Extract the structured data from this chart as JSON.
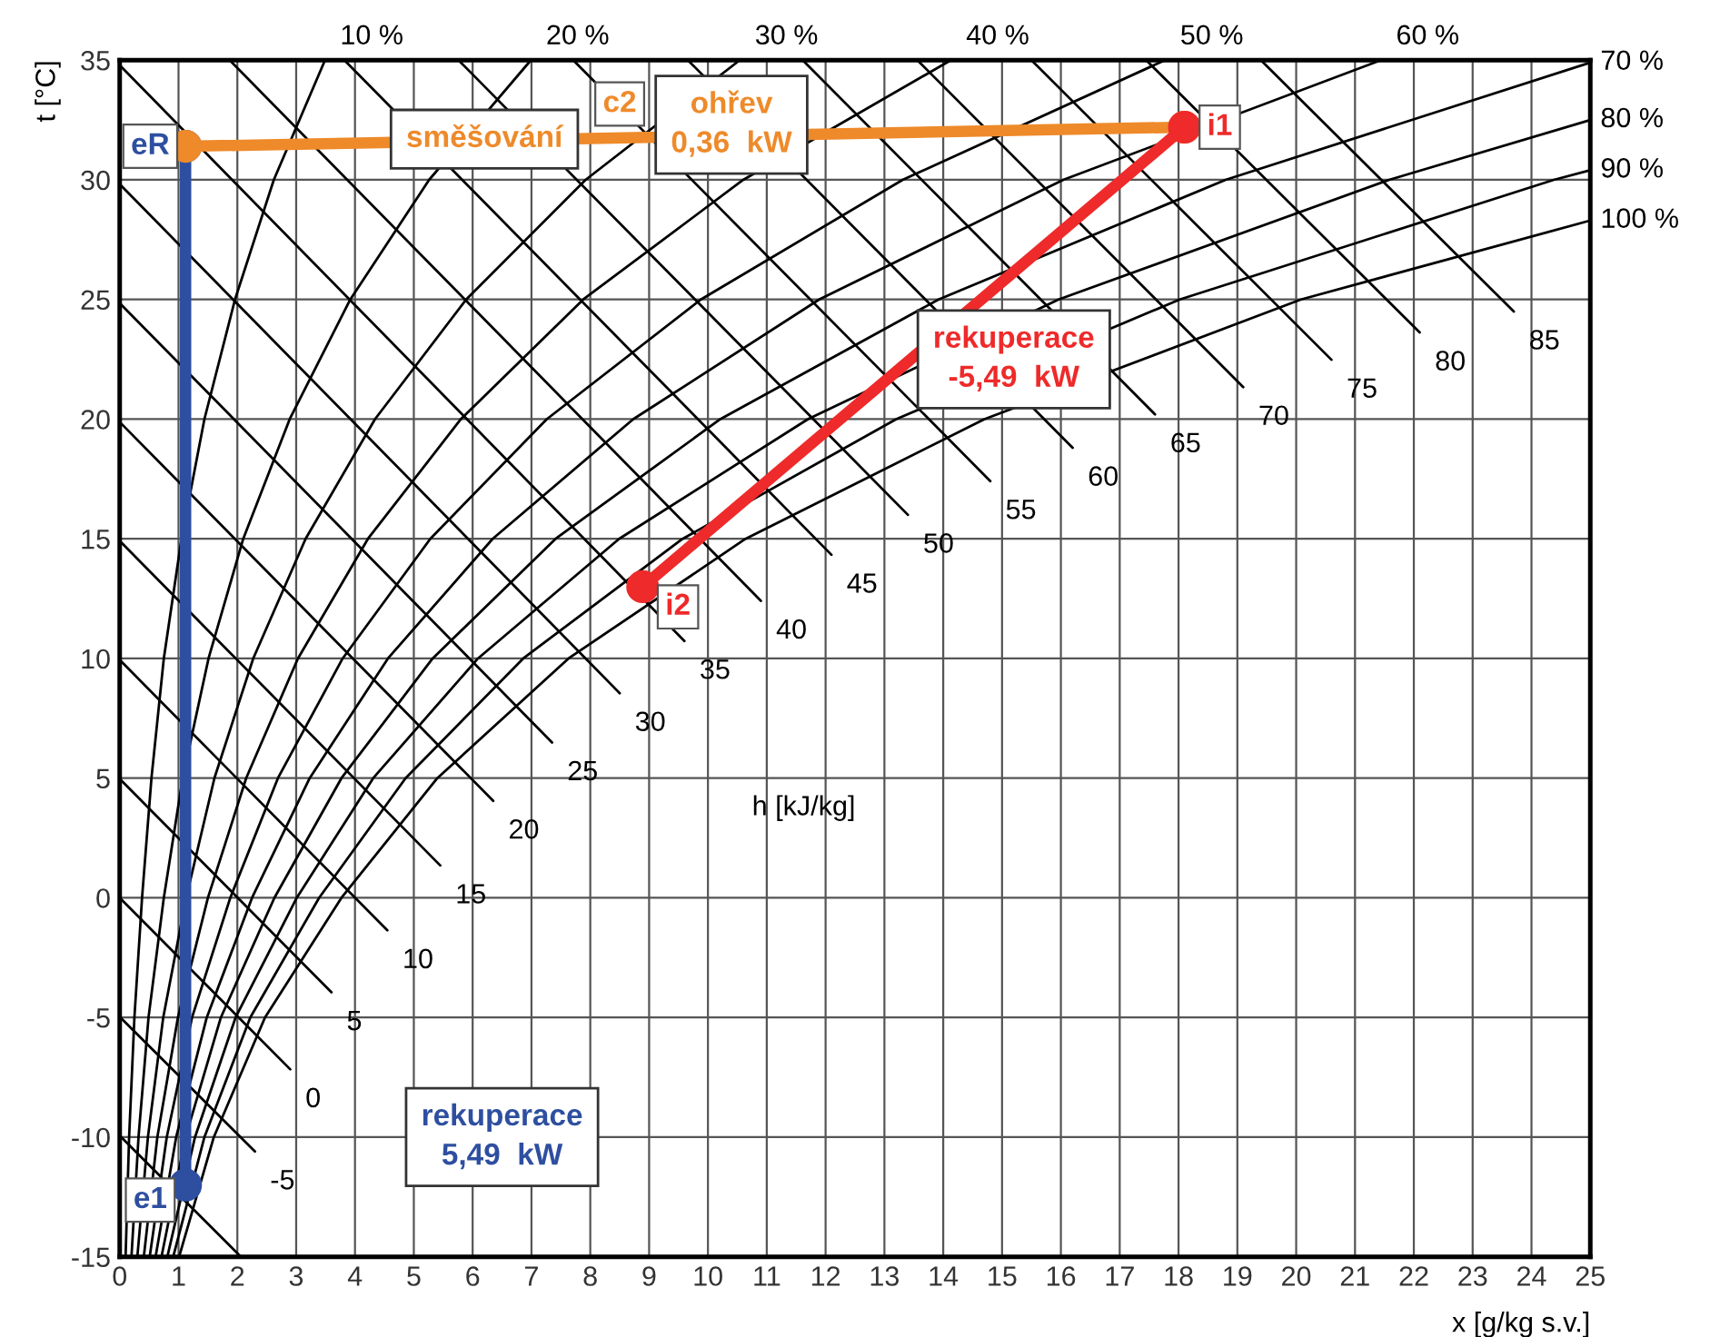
{
  "chart_data": {
    "type": "line",
    "xlabel": "x [g/kg s.v.]",
    "ylabel": "t [°C]",
    "xlim": [
      0,
      25
    ],
    "ylim": [
      -15,
      35
    ],
    "xticks": [
      0,
      1,
      2,
      3,
      4,
      5,
      6,
      7,
      8,
      9,
      10,
      11,
      12,
      13,
      14,
      15,
      16,
      17,
      18,
      19,
      20,
      21,
      22,
      23,
      24,
      25
    ],
    "yticks": [
      -15,
      -10,
      -5,
      0,
      5,
      10,
      15,
      20,
      25,
      30,
      35
    ],
    "grid": true,
    "series": [
      {
        "name": "10 %",
        "color": "#000000",
        "x": [
          0.1,
          0.16,
          0.25,
          0.38,
          0.54,
          0.75,
          1.05,
          1.44,
          1.96,
          2.62,
          3.49
        ],
        "values": [
          -15,
          -10,
          -5,
          0,
          5,
          10,
          15,
          20,
          25,
          30,
          35
        ]
      },
      {
        "name": "20 %",
        "color": "#000000",
        "x": [
          0.2,
          0.32,
          0.49,
          0.75,
          1.07,
          1.51,
          2.1,
          2.89,
          3.92,
          5.26,
          6.99
        ],
        "values": [
          -15,
          -10,
          -5,
          0,
          5,
          10,
          15,
          20,
          25,
          30,
          35
        ]
      },
      {
        "name": "30 %",
        "color": "#000000",
        "x": [
          0.3,
          0.48,
          0.74,
          1.13,
          1.61,
          2.27,
          3.16,
          4.34,
          5.89,
          7.92,
          10.54
        ],
        "values": [
          -15,
          -10,
          -5,
          0,
          5,
          10,
          15,
          20,
          25,
          30,
          35
        ]
      },
      {
        "name": "40 %",
        "color": "#000000",
        "x": [
          0.41,
          0.64,
          0.99,
          1.5,
          2.15,
          3.03,
          4.22,
          5.8,
          7.88,
          10.6,
          14.13
        ],
        "values": [
          -15,
          -10,
          -5,
          0,
          5,
          10,
          15,
          20,
          25,
          30,
          35
        ]
      },
      {
        "name": "50 %",
        "color": "#000000",
        "x": [
          0.51,
          0.8,
          1.23,
          1.88,
          2.69,
          3.79,
          5.28,
          7.26,
          9.88,
          13.31,
          17.77
        ],
        "values": [
          -15,
          -10,
          -5,
          0,
          5,
          10,
          15,
          20,
          25,
          30,
          35
        ]
      },
      {
        "name": "60 %",
        "color": "#000000",
        "x": [
          0.61,
          0.96,
          1.48,
          2.25,
          3.23,
          4.56,
          6.34,
          8.73,
          11.89,
          16.04,
          21.44
        ],
        "values": [
          -15,
          -10,
          -5,
          0,
          5,
          10,
          15,
          20,
          25,
          30,
          35
        ]
      },
      {
        "name": "70 %",
        "color": "#000000",
        "x": [
          0.71,
          1.12,
          1.72,
          2.63,
          3.77,
          5.32,
          7.41,
          10.21,
          13.92,
          18.8,
          25
        ],
        "values": [
          -15,
          -10,
          -5,
          0,
          5,
          10,
          15,
          20,
          25,
          30,
          34.9
        ]
      },
      {
        "name": "80 %",
        "color": "#000000",
        "x": [
          0.81,
          1.28,
          1.97,
          3.01,
          4.31,
          6.09,
          8.49,
          11.7,
          15.96,
          21.58,
          25
        ],
        "values": [
          -15,
          -10,
          -5,
          0,
          5,
          10,
          15,
          20,
          25,
          30,
          32.5
        ]
      },
      {
        "name": "90 %",
        "color": "#000000",
        "x": [
          0.91,
          1.44,
          2.22,
          3.39,
          4.86,
          6.86,
          9.57,
          13.2,
          18.02,
          24.38,
          25
        ],
        "values": [
          -15,
          -10,
          -5,
          0,
          5,
          10,
          15,
          20,
          25,
          30,
          30.4
        ]
      },
      {
        "name": "100 %",
        "color": "#000000",
        "x": [
          1.01,
          1.6,
          2.47,
          3.77,
          5.4,
          7.63,
          10.64,
          14.7,
          20.08,
          25
        ],
        "values": [
          -15,
          -10,
          -5,
          0,
          5,
          10,
          15,
          20,
          25,
          28.3
        ]
      },
      {
        "color": "#000000",
        "x": [
          0,
          2.06
        ],
        "values": [
          -9.94,
          -15
        ]
      },
      {
        "name": "-5",
        "color": "#000000",
        "x": [
          0,
          2.3
        ],
        "values": [
          -4.97,
          -10.6
        ]
      },
      {
        "name": "0",
        "color": "#000000",
        "x": [
          0,
          2.9
        ],
        "values": [
          0,
          -7.17
        ]
      },
      {
        "name": "5",
        "color": "#000000",
        "x": [
          0,
          3.6
        ],
        "values": [
          4.97,
          -3.95
        ]
      },
      {
        "name": "10",
        "color": "#000000",
        "x": [
          0,
          4.55
        ],
        "values": [
          9.94,
          -1.36
        ]
      },
      {
        "name": "15",
        "color": "#000000",
        "x": [
          0,
          5.45
        ],
        "values": [
          14.91,
          1.35
        ]
      },
      {
        "name": "20",
        "color": "#000000",
        "x": [
          0,
          6.35
        ],
        "values": [
          19.88,
          4.05
        ]
      },
      {
        "name": "25",
        "color": "#000000",
        "x": [
          0,
          7.35
        ],
        "values": [
          24.85,
          6.49
        ]
      },
      {
        "name": "30",
        "color": "#000000",
        "x": [
          0,
          8.5
        ],
        "values": [
          29.82,
          8.55
        ]
      },
      {
        "name": "35",
        "color": "#000000",
        "x": [
          0,
          9.6
        ],
        "values": [
          34.79,
          10.73
        ]
      },
      {
        "name": "40",
        "color": "#000000",
        "x": [
          1.87,
          10.9
        ],
        "values": [
          35,
          12.41
        ]
      },
      {
        "name": "45",
        "color": "#000000",
        "x": [
          3.82,
          12.1
        ],
        "values": [
          35,
          14.33
        ]
      },
      {
        "name": "50",
        "color": "#000000",
        "x": [
          5.76,
          13.4
        ],
        "values": [
          35,
          16.0
        ]
      },
      {
        "name": "55",
        "color": "#000000",
        "x": [
          7.71,
          14.8
        ],
        "values": [
          35,
          17.41
        ]
      },
      {
        "name": "60",
        "color": "#000000",
        "x": [
          9.66,
          16.2
        ],
        "values": [
          35,
          18.8
        ]
      },
      {
        "name": "65",
        "color": "#000000",
        "x": [
          11.61,
          17.6
        ],
        "values": [
          35,
          20.2
        ]
      },
      {
        "name": "70",
        "color": "#000000",
        "x": [
          13.56,
          19.1
        ],
        "values": [
          35,
          21.34
        ]
      },
      {
        "name": "75",
        "color": "#000000",
        "x": [
          15.5,
          20.6
        ],
        "values": [
          35,
          22.48
        ]
      },
      {
        "name": "80",
        "color": "#000000",
        "x": [
          17.45,
          22.1
        ],
        "values": [
          35,
          23.62
        ]
      },
      {
        "name": "85",
        "color": "#000000",
        "x": [
          19.4,
          23.7
        ],
        "values": [
          35,
          24.5
        ]
      },
      {
        "color": "#2e4fa0",
        "marker": "circle",
        "x": [
          1.12,
          1.12
        ],
        "values": [
          -12.0,
          31.4
        ]
      },
      {
        "color": "#ee8a2a",
        "marker": "circle",
        "x": [
          1.12,
          18.1
        ],
        "values": [
          31.4,
          32.2
        ]
      },
      {
        "color": "#ee2a2a",
        "marker": "circle",
        "x": [
          18.1,
          8.89
        ],
        "values": [
          32.2,
          13.0
        ]
      }
    ],
    "annotations": [
      {
        "text": "eR",
        "x": 1.12,
        "y": 31.4
      },
      {
        "text": "e1",
        "x": 1.12,
        "y": -12.0
      },
      {
        "text": "i1",
        "x": 18.1,
        "y": 32.2
      },
      {
        "text": "i2",
        "x": 8.89,
        "y": 13.0
      },
      {
        "text": "c2",
        "x": 8.5,
        "y": 31.9
      },
      {
        "text": "směšování",
        "x": 6.2,
        "y": 31.7
      },
      {
        "text": "ohřev\n0,36  kW",
        "x": 10.4,
        "y": 32.3
      },
      "rekuperace\n5,49  kW",
      {
        "text": "rekuperace\n-5,49  kW",
        "x": 15.2,
        "y": 22.5
      },
      "h [kJ/kg]"
    ]
  }
}
